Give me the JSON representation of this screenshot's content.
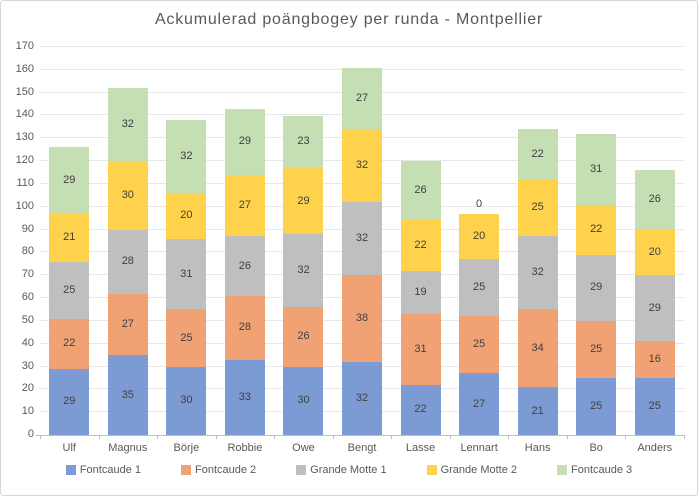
{
  "chart_data": {
    "type": "bar",
    "stacked": true,
    "title": "Ackumulerad poängbogey per runda - Montpellier",
    "categories": [
      "Ulf",
      "Magnus",
      "Börje",
      "Robbie",
      "Owe",
      "Bengt",
      "Lasse",
      "Lennart",
      "Hans",
      "Bo",
      "Anders"
    ],
    "series": [
      {
        "name": "Fontcaude 1",
        "color": "#7C9BD5",
        "values": [
          29,
          35,
          30,
          33,
          30,
          32,
          22,
          27,
          21,
          25,
          25
        ]
      },
      {
        "name": "Fontcaude 2",
        "color": "#F0A274",
        "values": [
          22,
          27,
          25,
          28,
          26,
          38,
          31,
          25,
          34,
          25,
          16
        ]
      },
      {
        "name": "Grande Motte 1",
        "color": "#BFBFBF",
        "values": [
          25,
          28,
          31,
          26,
          32,
          32,
          19,
          25,
          32,
          29,
          29
        ]
      },
      {
        "name": "Grande Motte 2",
        "color": "#FFD24C",
        "values": [
          21,
          30,
          20,
          27,
          29,
          32,
          22,
          20,
          25,
          22,
          20
        ]
      },
      {
        "name": "Fontcaude 3",
        "color": "#C6DEB3",
        "values": [
          29,
          32,
          32,
          29,
          23,
          27,
          26,
          0,
          22,
          31,
          26
        ]
      }
    ],
    "totals": [
      126,
      152,
      138,
      143,
      140,
      161,
      120,
      97,
      134,
      132,
      116
    ],
    "ylim": [
      0,
      170
    ],
    "ytick_step": 10,
    "yticks": [
      0,
      10,
      20,
      30,
      40,
      50,
      60,
      70,
      80,
      90,
      100,
      110,
      120,
      130,
      140,
      150,
      160,
      170
    ],
    "grid": true,
    "legend_position": "bottom",
    "colors": {
      "title_text": "#595959",
      "axis_text": "#595959",
      "data_label_text": "#404040",
      "gridline": "#E8E8E8",
      "axis_line": "#BFBFBF",
      "chart_border": "#D6D6D6",
      "background": "#FFFFFF"
    }
  }
}
